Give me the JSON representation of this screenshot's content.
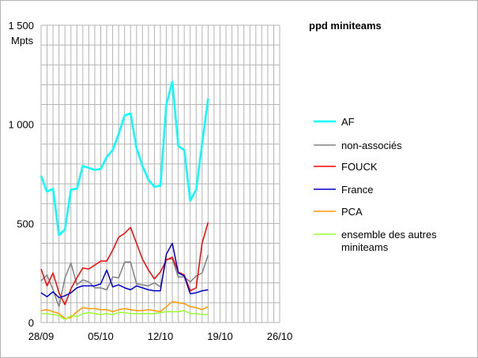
{
  "chart_data": {
    "type": "line",
    "title": "ppd miniteams",
    "ylabel": "Mpts",
    "ylim": [
      0,
      1500
    ],
    "yticks": [
      0,
      500,
      1000,
      1500
    ],
    "ytick_labels": [
      "0",
      "500",
      "1 000",
      "1 500"
    ],
    "xticks": [
      {
        "index": 0,
        "label": "28/09"
      },
      {
        "index": 10,
        "label": "05/10"
      },
      {
        "index": 20,
        "label": "12/10"
      },
      {
        "index": 30,
        "label": "19/10"
      },
      {
        "index": 40,
        "label": "26/10"
      }
    ],
    "n_points": 41,
    "grid": true,
    "legend_position": "right",
    "series": [
      {
        "name": "AF",
        "color": "#00ffff",
        "width": 2.5,
        "values": [
          740,
          660,
          675,
          440,
          470,
          670,
          675,
          790,
          780,
          770,
          775,
          835,
          870,
          950,
          1045,
          1055,
          880,
          790,
          720,
          685,
          690,
          1100,
          1215,
          890,
          870,
          615,
          670,
          900,
          1130,
          null,
          null,
          null,
          null,
          null,
          null,
          null,
          null,
          null,
          null,
          null,
          null
        ]
      },
      {
        "name": "non-associés",
        "color": "#808080",
        "width": 1.5,
        "values": [
          210,
          240,
          165,
          80,
          225,
          300,
          190,
          215,
          205,
          175,
          175,
          165,
          230,
          225,
          305,
          305,
          195,
          190,
          185,
          200,
          180,
          320,
          320,
          230,
          230,
          205,
          235,
          250,
          340,
          null,
          null,
          null,
          null,
          null,
          null,
          null,
          null,
          null,
          null,
          null,
          null
        ]
      },
      {
        "name": "FOUCK",
        "color": "#ff0000",
        "width": 1.5,
        "values": [
          270,
          185,
          250,
          150,
          90,
          170,
          225,
          275,
          270,
          290,
          310,
          310,
          365,
          430,
          450,
          480,
          400,
          320,
          265,
          220,
          255,
          315,
          330,
          255,
          240,
          160,
          175,
          400,
          505,
          null,
          null,
          null,
          null,
          null,
          null,
          null,
          null,
          null,
          null,
          null,
          null
        ]
      },
      {
        "name": "France",
        "color": "#0000cc",
        "width": 1.5,
        "values": [
          150,
          130,
          155,
          125,
          135,
          150,
          175,
          185,
          185,
          185,
          195,
          265,
          180,
          190,
          175,
          165,
          185,
          175,
          165,
          160,
          160,
          345,
          400,
          250,
          235,
          145,
          150,
          160,
          165,
          null,
          null,
          null,
          null,
          null,
          null,
          null,
          null,
          null,
          null,
          null,
          null
        ]
      },
      {
        "name": "PCA",
        "color": "#ff9900",
        "width": 1.5,
        "values": [
          60,
          65,
          55,
          45,
          20,
          25,
          55,
          75,
          70,
          70,
          65,
          65,
          55,
          65,
          70,
          65,
          60,
          60,
          65,
          60,
          55,
          80,
          105,
          100,
          95,
          80,
          75,
          65,
          80,
          null,
          null,
          null,
          null,
          null,
          null,
          null,
          null,
          null,
          null,
          null,
          null
        ]
      },
      {
        "name": "ensemble des autres miniteams",
        "label_lines": [
          "ensemble des autres",
          "miniteams"
        ],
        "color": "#99ff33",
        "width": 1.5,
        "values": [
          45,
          45,
          40,
          35,
          15,
          35,
          30,
          45,
          50,
          45,
          40,
          45,
          40,
          50,
          50,
          45,
          45,
          45,
          45,
          45,
          50,
          55,
          55,
          55,
          60,
          45,
          45,
          40,
          40,
          null,
          null,
          null,
          null,
          null,
          null,
          null,
          null,
          null,
          null,
          null,
          null
        ]
      }
    ]
  }
}
